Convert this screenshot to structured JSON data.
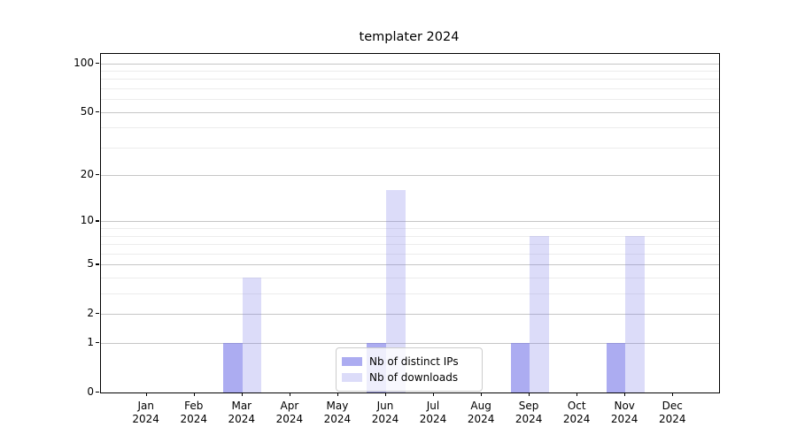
{
  "title": "templater 2024",
  "chart_data": {
    "type": "bar",
    "title": "templater 2024",
    "categories": [
      "Jan",
      "Feb",
      "Mar",
      "Apr",
      "May",
      "Jun",
      "Jul",
      "Aug",
      "Sep",
      "Oct",
      "Nov",
      "Dec"
    ],
    "tick_sublabel": "2024",
    "series": [
      {
        "name": "Nb of distinct IPs",
        "color": "#7474e8",
        "alpha": 0.6,
        "values": [
          0,
          0,
          1,
          0,
          0,
          1,
          0,
          0,
          1,
          0,
          1,
          0
        ]
      },
      {
        "name": "Nb of downloads",
        "color": "#7474e8",
        "alpha": 0.25,
        "values": [
          0,
          0,
          4,
          0,
          0,
          16,
          0,
          0,
          8,
          0,
          8,
          0
        ]
      }
    ],
    "xlabel": "",
    "ylabel": "",
    "yscale": "log1p",
    "ylim": [
      0,
      114
    ],
    "yticks": [
      0,
      1,
      2,
      5,
      10,
      20,
      50,
      100
    ],
    "yticks_minor": [
      3,
      4,
      6,
      7,
      8,
      9,
      30,
      40,
      60,
      70,
      80,
      90
    ],
    "grid": true,
    "legend_position": "lower center"
  }
}
